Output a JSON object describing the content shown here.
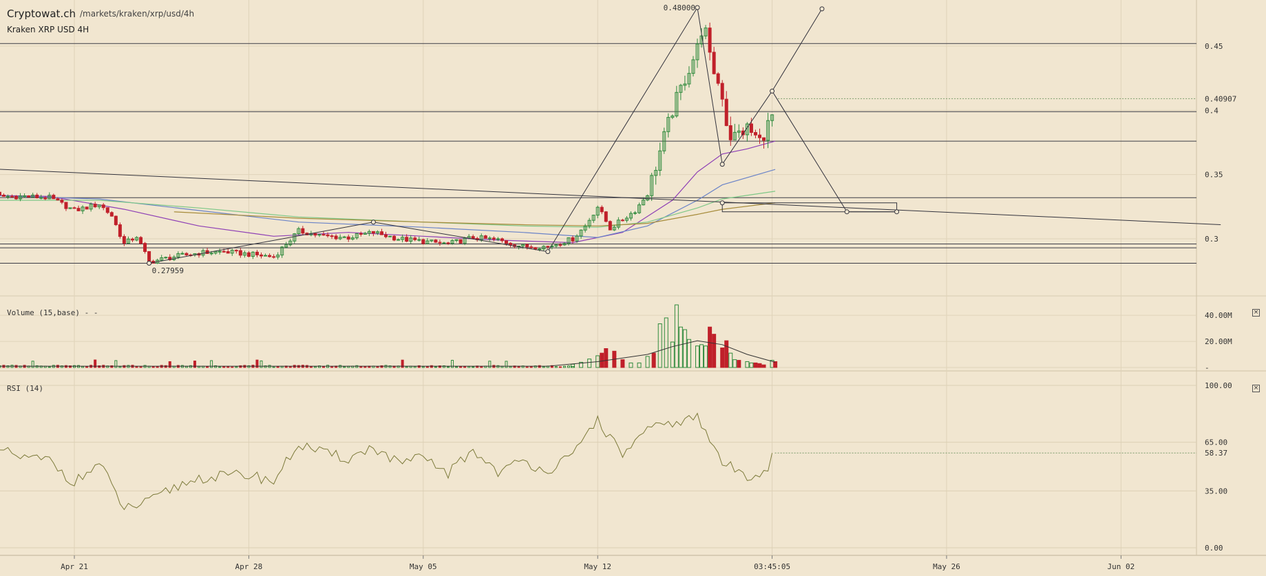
{
  "header": {
    "site": "Cryptowat.ch",
    "path": "/markets/kraken/xrp/usd/4h",
    "market": "Kraken XRP USD 4H"
  },
  "panels": {
    "volume_label": "Volume (15,base) - -",
    "rsi_label": "RSI (14)",
    "close_label": "×"
  },
  "colors": {
    "background": "#f1e6d0",
    "up_candle": "#2f8a3c",
    "down_candle": "#c0202a",
    "ma_purple": "#8e3fb5",
    "ma_blue": "#6a83c8",
    "ma_green": "#7ec887",
    "ma_olive": "#a68b3a",
    "rsi_line": "#7c7a3a"
  },
  "chart_data": [
    {
      "type": "candlestick",
      "title": "Kraken XRP USD 4H",
      "y_ticks": [
        {
          "value": 0.45,
          "label": "0.45"
        },
        {
          "value": 0.4,
          "label": "0.4"
        },
        {
          "value": 0.35,
          "label": "0.35"
        },
        {
          "value": 0.3,
          "label": "0.3"
        }
      ],
      "last_price": {
        "value": 0.40907,
        "label": "0.40907"
      },
      "annotations": [
        {
          "label": "0.48000",
          "date": "May 16",
          "value": 0.48
        },
        {
          "label": "0.27959",
          "date": "Apr 24",
          "value": 0.27959
        }
      ],
      "horizontal_levels": [
        0.452,
        0.399,
        0.376,
        0.332,
        0.296,
        0.293,
        0.281
      ],
      "x_ticks": [
        {
          "date": "Apr 21",
          "label": "Apr 21"
        },
        {
          "date": "Apr 28",
          "label": "Apr 28"
        },
        {
          "date": "May 05",
          "label": "May 05"
        },
        {
          "date": "May 12",
          "label": "May 12"
        },
        {
          "date": "May 19",
          "label": "03:45:05"
        },
        {
          "date": "May 26",
          "label": "May 26"
        },
        {
          "date": "Jun 02",
          "label": "Jun 02"
        }
      ],
      "price_path": [
        [
          "Apr 17",
          0.345
        ],
        [
          "Apr 18",
          0.333
        ],
        [
          "Apr 19",
          0.333
        ],
        [
          "Apr 20",
          0.332
        ],
        [
          "Apr 21",
          0.322
        ],
        [
          "Apr 22",
          0.327
        ],
        [
          "Apr 22 12:00",
          0.318
        ],
        [
          "Apr 23",
          0.296
        ],
        [
          "Apr 23 12:00",
          0.302
        ],
        [
          "Apr 24",
          0.282
        ],
        [
          "Apr 25",
          0.286
        ],
        [
          "Apr 26",
          0.289
        ],
        [
          "Apr 27",
          0.29
        ],
        [
          "Apr 28",
          0.288
        ],
        [
          "Apr 29",
          0.286
        ],
        [
          "Apr 30",
          0.306
        ],
        [
          "May 01",
          0.302
        ],
        [
          "May 02",
          0.301
        ],
        [
          "May 03",
          0.305
        ],
        [
          "May 04",
          0.3
        ],
        [
          "May 05",
          0.298
        ],
        [
          "May 06",
          0.296
        ],
        [
          "May 07",
          0.301
        ],
        [
          "May 08",
          0.299
        ],
        [
          "May 09",
          0.294
        ],
        [
          "May 10",
          0.294
        ],
        [
          "May 11",
          0.3
        ],
        [
          "May 11 12:00",
          0.31
        ],
        [
          "May 12",
          0.325
        ],
        [
          "May 12 12:00",
          0.308
        ],
        [
          "May 13",
          0.315
        ],
        [
          "May 13 12:00",
          0.322
        ],
        [
          "May 14",
          0.335
        ],
        [
          "May 14 12:00",
          0.368
        ],
        [
          "May 15",
          0.4
        ],
        [
          "May 15 12:00",
          0.425
        ],
        [
          "May 16",
          0.448
        ],
        [
          "May 16 06:00",
          0.47
        ],
        [
          "May 16 12:00",
          0.44
        ],
        [
          "May 17",
          0.412
        ],
        [
          "May 17 06:00",
          0.38
        ],
        [
          "May 17 12:00",
          0.38
        ],
        [
          "May 18",
          0.386
        ],
        [
          "May 18 12:00",
          0.376
        ],
        [
          "May 19",
          0.395
        ],
        [
          "May 19 03:00",
          0.409
        ]
      ],
      "moving_averages": [
        {
          "color_key": "ma_purple",
          "points": [
            [
              "Apr 17",
              0.334
            ],
            [
              "Apr 20",
              0.333
            ],
            [
              "Apr 23",
              0.323
            ],
            [
              "Apr 26",
              0.31
            ],
            [
              "Apr 29",
              0.302
            ],
            [
              "May 02",
              0.305
            ],
            [
              "May 05",
              0.302
            ],
            [
              "May 08",
              0.299
            ],
            [
              "May 11",
              0.297
            ],
            [
              "May 13",
              0.305
            ],
            [
              "May 15",
              0.33
            ],
            [
              "May 16",
              0.352
            ],
            [
              "May 17",
              0.366
            ],
            [
              "May 18",
              0.37
            ],
            [
              "May 19 03:00",
              0.376
            ]
          ]
        },
        {
          "color_key": "ma_blue",
          "points": [
            [
              "Apr 17",
              0.334
            ],
            [
              "Apr 22",
              0.331
            ],
            [
              "Apr 26",
              0.322
            ],
            [
              "Apr 30",
              0.313
            ],
            [
              "May 05",
              0.309
            ],
            [
              "May 09",
              0.305
            ],
            [
              "May 12",
              0.301
            ],
            [
              "May 14",
              0.31
            ],
            [
              "May 16",
              0.33
            ],
            [
              "May 17",
              0.342
            ],
            [
              "May 19 03:00",
              0.354
            ]
          ]
        },
        {
          "color_key": "ma_green",
          "points": [
            [
              "Apr 17",
              0.33
            ],
            [
              "Apr 22",
              0.33
            ],
            [
              "Apr 26",
              0.324
            ],
            [
              "Apr 30",
              0.317
            ],
            [
              "May 05",
              0.313
            ],
            [
              "May 09",
              0.31
            ],
            [
              "May 12",
              0.309
            ],
            [
              "May 14",
              0.313
            ],
            [
              "May 16",
              0.324
            ],
            [
              "May 17",
              0.331
            ],
            [
              "May 19 03:00",
              0.337
            ]
          ]
        },
        {
          "color_key": "ma_olive",
          "points": [
            [
              "Apr 25",
              0.321
            ],
            [
              "Apr 30",
              0.316
            ],
            [
              "May 05",
              0.313
            ],
            [
              "May 09",
              0.311
            ],
            [
              "May 12",
              0.31
            ],
            [
              "May 14",
              0.312
            ],
            [
              "May 16",
              0.319
            ],
            [
              "May 17",
              0.323
            ],
            [
              "May 19 03:00",
              0.328
            ]
          ]
        }
      ],
      "drawings": [
        [
          [
            "Apr 17",
            0.355
          ],
          [
            "Jun 06",
            0.311
          ]
        ],
        [
          [
            "Apr 24",
            0.281
          ],
          [
            "May 03",
            0.313
          ],
          [
            "May 10",
            0.29
          ],
          [
            "May 16",
            0.48
          ],
          [
            "May 17",
            0.358
          ],
          [
            "May 19",
            0.415
          ],
          [
            "May 21",
            0.479
          ]
        ],
        [
          [
            "May 19",
            0.415
          ],
          [
            "May 22",
            0.321
          ],
          [
            "May 24",
            0.321
          ]
        ],
        [
          [
            "May 17",
            0.328
          ],
          [
            "May 24",
            0.328
          ],
          [
            "May 24",
            0.321
          ],
          [
            "May 17",
            0.321
          ],
          [
            "May 17",
            0.328
          ]
        ]
      ]
    },
    {
      "type": "bar",
      "title": "Volume (15,base) - -",
      "y_ticks": [
        {
          "value": 40000000,
          "label": "40.00M"
        },
        {
          "value": 20000000,
          "label": "20.00M"
        },
        {
          "value": 0,
          "label": "-"
        }
      ],
      "y_range": [
        0,
        48000000
      ],
      "bars": [
        [
          "May 11",
          2500000,
          "up"
        ],
        [
          "May 11 08:00",
          4000000,
          "up"
        ],
        [
          "May 11 16:00",
          6500000,
          "up"
        ],
        [
          "May 12",
          9000000,
          "up"
        ],
        [
          "May 12 04:00",
          11000000,
          "down"
        ],
        [
          "May 12 08:00",
          14500000,
          "down"
        ],
        [
          "May 12 16:00",
          12500000,
          "down"
        ],
        [
          "May 13",
          6000000,
          "down"
        ],
        [
          "May 13 08:00",
          3500000,
          "up"
        ],
        [
          "May 13 16:00",
          3500000,
          "up"
        ],
        [
          "May 14",
          8500000,
          "up"
        ],
        [
          "May 14 06:00",
          11000000,
          "down"
        ],
        [
          "May 14 12:00",
          33500000,
          "up"
        ],
        [
          "May 14 18:00",
          38000000,
          "up"
        ],
        [
          "May 15",
          19500000,
          "up"
        ],
        [
          "May 15 04:00",
          48000000,
          "up"
        ],
        [
          "May 15 08:00",
          31000000,
          "up"
        ],
        [
          "May 15 12:00",
          29000000,
          "up"
        ],
        [
          "May 15 16:00",
          21500000,
          "up"
        ],
        [
          "May 16",
          16500000,
          "up"
        ],
        [
          "May 16 04:00",
          17500000,
          "up"
        ],
        [
          "May 16 08:00",
          16500000,
          "up"
        ],
        [
          "May 16 12:00",
          31000000,
          "down"
        ],
        [
          "May 16 16:00",
          25500000,
          "down"
        ],
        [
          "May 17",
          15000000,
          "down"
        ],
        [
          "May 17 04:00",
          20500000,
          "down"
        ],
        [
          "May 17 08:00",
          11000000,
          "up"
        ],
        [
          "May 17 12:00",
          6000000,
          "up"
        ],
        [
          "May 17 16:00",
          5500000,
          "down"
        ],
        [
          "May 18",
          4500000,
          "up"
        ],
        [
          "May 18 04:00",
          3500000,
          "up"
        ],
        [
          "May 18 08:00",
          3500000,
          "down"
        ],
        [
          "May 18 12:00",
          3000000,
          "down"
        ],
        [
          "May 18 16:00",
          2000000,
          "down"
        ],
        [
          "May 19",
          5500000,
          "up"
        ],
        [
          "May 19 03:00",
          4500000,
          "down"
        ]
      ],
      "ma_line": [
        [
          "Apr 17",
          1000000
        ],
        [
          "May 10",
          1000000
        ],
        [
          "May 12",
          4500000
        ],
        [
          "May 14",
          10000000
        ],
        [
          "May 15",
          16000000
        ],
        [
          "May 16",
          20500000
        ],
        [
          "May 17",
          17500000
        ],
        [
          "May 18",
          10000000
        ],
        [
          "May 19 03:00",
          4000000
        ]
      ]
    },
    {
      "type": "line",
      "title": "RSI (14)",
      "y_ticks": [
        {
          "value": 100,
          "label": "100.00"
        },
        {
          "value": 65,
          "label": "65.00"
        },
        {
          "value": 35,
          "label": "35.00"
        },
        {
          "value": 0,
          "label": "0.00"
        }
      ],
      "last_value": {
        "value": 58.37,
        "label": "58.37"
      },
      "y_range": [
        0,
        100
      ],
      "values": [
        [
          "Apr 17",
          71
        ],
        [
          "Apr 18",
          60
        ],
        [
          "Apr 19",
          55
        ],
        [
          "Apr 20",
          54
        ],
        [
          "Apr 21",
          40
        ],
        [
          "Apr 22",
          52
        ],
        [
          "Apr 23",
          24
        ],
        [
          "Apr 24",
          28
        ],
        [
          "Apr 25",
          37
        ],
        [
          "Apr 26",
          43
        ],
        [
          "Apr 27",
          44
        ],
        [
          "Apr 28",
          45
        ],
        [
          "Apr 29",
          41
        ],
        [
          "Apr 30",
          64
        ],
        [
          "May 01",
          58
        ],
        [
          "May 02",
          55
        ],
        [
          "May 03",
          62
        ],
        [
          "May 04",
          52
        ],
        [
          "May 05",
          55
        ],
        [
          "May 06",
          46
        ],
        [
          "May 07",
          60
        ],
        [
          "May 08",
          47
        ],
        [
          "May 09",
          53
        ],
        [
          "May 10",
          48
        ],
        [
          "May 11",
          56
        ],
        [
          "May 12",
          80
        ],
        [
          "May 12 12:00",
          67
        ],
        [
          "May 13",
          58
        ],
        [
          "May 14",
          72
        ],
        [
          "May 15",
          77
        ],
        [
          "May 16",
          80
        ],
        [
          "May 16 12:00",
          66
        ],
        [
          "May 17",
          53
        ],
        [
          "May 17 12:00",
          48
        ],
        [
          "May 18",
          44
        ],
        [
          "May 19",
          50
        ],
        [
          "May 19 03:00",
          58.37
        ]
      ]
    }
  ]
}
